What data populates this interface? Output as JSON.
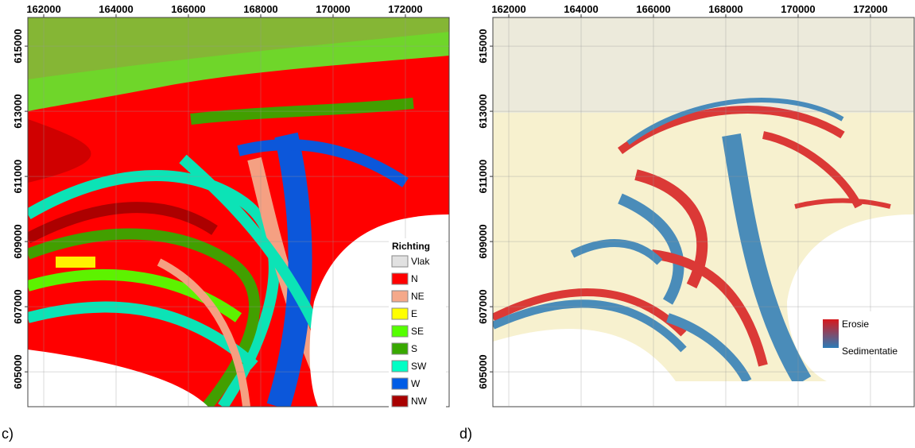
{
  "panels": [
    {
      "label": "c)",
      "xlim": [
        161560,
        173210
      ],
      "ylim": [
        603930,
        615880
      ],
      "xticks": [
        162000,
        164000,
        166000,
        168000,
        170000,
        172000
      ],
      "yticks": [
        605000,
        607000,
        609000,
        611000,
        613000,
        615000
      ],
      "legend": {
        "title": "Richting",
        "entries": [
          {
            "label": "Vlak",
            "color": "#e1e1e1"
          },
          {
            "label": "N",
            "color": "#ff0000"
          },
          {
            "label": "NE",
            "color": "#f5a98a"
          },
          {
            "label": "E",
            "color": "#ffff00"
          },
          {
            "label": "SE",
            "color": "#55ff00"
          },
          {
            "label": "S",
            "color": "#38a800"
          },
          {
            "label": "SW",
            "color": "#00ffc5"
          },
          {
            "label": "W",
            "color": "#005ce6"
          },
          {
            "label": "NW",
            "color": "#a80000"
          }
        ]
      }
    },
    {
      "label": "d)",
      "xlim": [
        161560,
        173210
      ],
      "ylim": [
        603930,
        615880
      ],
      "xticks": [
        162000,
        164000,
        166000,
        168000,
        170000,
        172000
      ],
      "yticks": [
        605000,
        607000,
        609000,
        611000,
        613000,
        615000
      ],
      "legend": {
        "entries": [
          {
            "label": "Erosie",
            "color": "#d7191c"
          },
          {
            "label": "Sedimentatie",
            "color": "#2c7bb6"
          }
        ]
      }
    }
  ]
}
